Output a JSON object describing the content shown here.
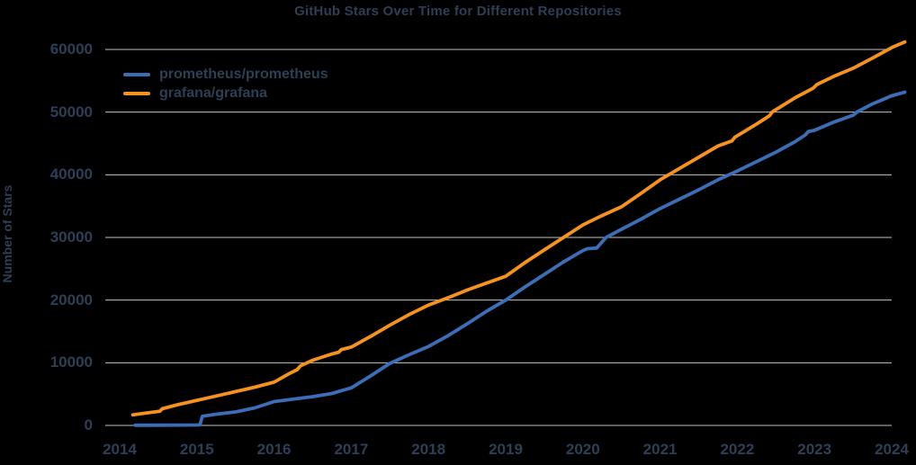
{
  "colors": {
    "background": "#000000",
    "text": "#2e3f55",
    "gridline": "#c2c2c2",
    "prometheus_line": "#3c6db6",
    "grafana_line": "#f69220"
  },
  "chart_data": {
    "type": "line",
    "title": "GitHub Stars Over Time for Different Repositories",
    "xlabel": "",
    "ylabel": "Number of Stars",
    "xlim": [
      2013.8,
      2024.2
    ],
    "ylim": [
      0,
      62000
    ],
    "x_ticks": [
      2014,
      2015,
      2016,
      2017,
      2018,
      2019,
      2020,
      2021,
      2022,
      2023,
      2024
    ],
    "y_ticks": [
      0,
      10000,
      20000,
      30000,
      40000,
      50000,
      60000
    ],
    "grid": "horizontal-only",
    "legend_position": "top-left",
    "series": [
      {
        "name": "prometheus/prometheus",
        "color": "#3c6db6",
        "points": [
          [
            2014.2,
            30
          ],
          [
            2014.6,
            50
          ],
          [
            2015.0,
            70
          ],
          [
            2015.04,
            90
          ],
          [
            2015.07,
            1450
          ],
          [
            2015.25,
            1800
          ],
          [
            2015.5,
            2150
          ],
          [
            2015.75,
            2800
          ],
          [
            2016.0,
            3800
          ],
          [
            2016.25,
            4200
          ],
          [
            2016.5,
            4600
          ],
          [
            2016.75,
            5100
          ],
          [
            2017.0,
            6000
          ],
          [
            2017.25,
            7900
          ],
          [
            2017.5,
            9900
          ],
          [
            2017.75,
            11300
          ],
          [
            2018.0,
            12600
          ],
          [
            2018.25,
            14300
          ],
          [
            2018.5,
            16200
          ],
          [
            2018.75,
            18200
          ],
          [
            2019.0,
            20000
          ],
          [
            2019.25,
            22100
          ],
          [
            2019.5,
            24100
          ],
          [
            2019.75,
            26100
          ],
          [
            2020.0,
            27900
          ],
          [
            2020.06,
            28200
          ],
          [
            2020.18,
            28300
          ],
          [
            2020.3,
            30000
          ],
          [
            2020.5,
            31300
          ],
          [
            2020.75,
            32900
          ],
          [
            2021.0,
            34600
          ],
          [
            2021.25,
            36100
          ],
          [
            2021.5,
            37600
          ],
          [
            2021.75,
            39200
          ],
          [
            2022.0,
            40600
          ],
          [
            2022.25,
            42100
          ],
          [
            2022.5,
            43600
          ],
          [
            2022.75,
            45300
          ],
          [
            2022.88,
            46350
          ],
          [
            2022.92,
            46900
          ],
          [
            2023.0,
            47100
          ],
          [
            2023.25,
            48400
          ],
          [
            2023.5,
            49500
          ],
          [
            2023.55,
            50000
          ],
          [
            2023.75,
            51300
          ],
          [
            2024.0,
            52600
          ],
          [
            2024.17,
            53200
          ]
        ]
      },
      {
        "name": "grafana/grafana",
        "color": "#f69220",
        "points": [
          [
            2014.17,
            1700
          ],
          [
            2014.35,
            2000
          ],
          [
            2014.52,
            2250
          ],
          [
            2014.55,
            2650
          ],
          [
            2014.75,
            3300
          ],
          [
            2015.0,
            4000
          ],
          [
            2015.25,
            4700
          ],
          [
            2015.5,
            5400
          ],
          [
            2015.75,
            6100
          ],
          [
            2016.0,
            6900
          ],
          [
            2016.2,
            8300
          ],
          [
            2016.3,
            8900
          ],
          [
            2016.34,
            9500
          ],
          [
            2016.5,
            10400
          ],
          [
            2016.75,
            11400
          ],
          [
            2016.84,
            11700
          ],
          [
            2016.87,
            12100
          ],
          [
            2017.0,
            12500
          ],
          [
            2017.25,
            14200
          ],
          [
            2017.5,
            16000
          ],
          [
            2017.75,
            17700
          ],
          [
            2018.0,
            19200
          ],
          [
            2018.3,
            20600
          ],
          [
            2018.5,
            21600
          ],
          [
            2018.75,
            22700
          ],
          [
            2019.0,
            23800
          ],
          [
            2019.25,
            26000
          ],
          [
            2019.5,
            28000
          ],
          [
            2019.75,
            30000
          ],
          [
            2020.0,
            32000
          ],
          [
            2020.25,
            33500
          ],
          [
            2020.5,
            34900
          ],
          [
            2020.75,
            37000
          ],
          [
            2021.0,
            39200
          ],
          [
            2021.25,
            41000
          ],
          [
            2021.5,
            42800
          ],
          [
            2021.75,
            44600
          ],
          [
            2021.93,
            45400
          ],
          [
            2021.97,
            46000
          ],
          [
            2022.25,
            48100
          ],
          [
            2022.42,
            49450
          ],
          [
            2022.45,
            50000
          ],
          [
            2022.75,
            52300
          ],
          [
            2022.98,
            53800
          ],
          [
            2023.03,
            54400
          ],
          [
            2023.25,
            55700
          ],
          [
            2023.5,
            57000
          ],
          [
            2023.75,
            58600
          ],
          [
            2024.0,
            60300
          ],
          [
            2024.17,
            61200
          ]
        ]
      }
    ]
  }
}
